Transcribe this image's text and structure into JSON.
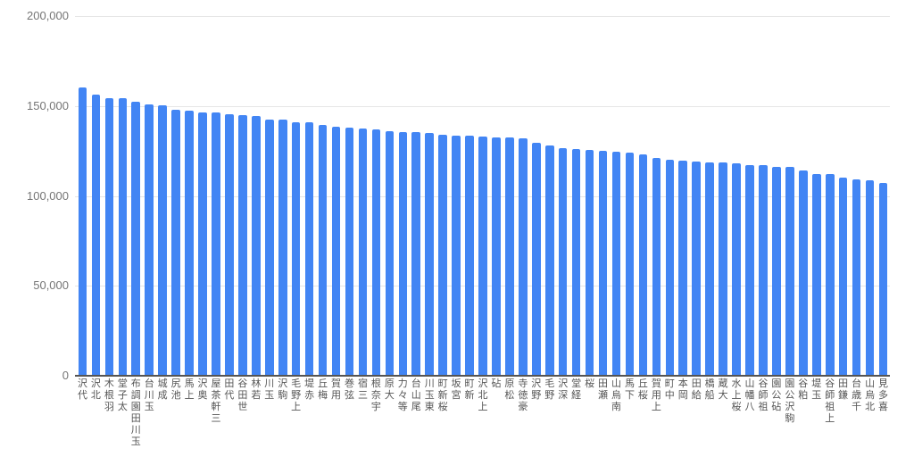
{
  "chart_data": {
    "type": "bar",
    "title": "",
    "xlabel": "",
    "ylabel": "",
    "ylim": [
      0,
      200000
    ],
    "grid": true,
    "legend_position": "none",
    "yticks": [
      {
        "value": 0,
        "label": "0"
      },
      {
        "value": 50000,
        "label": "50,000"
      },
      {
        "value": 100000,
        "label": "100,000"
      },
      {
        "value": 150000,
        "label": "150,000"
      },
      {
        "value": 200000,
        "label": "200,000"
      }
    ],
    "x_label_style": "vertical-reversed-upright-chars",
    "categories": [
      "代沢",
      "北沢",
      "羽根木",
      "太子堂",
      "玉川田園調布",
      "玉川台",
      "成城",
      "池尻",
      "上馬",
      "奥沢",
      "三軒茶屋",
      "代田",
      "世田谷",
      "若林",
      "玉川",
      "駒沢",
      "上野毛",
      "赤堤",
      "梅丘",
      "用賀",
      "弦巻",
      "三宿",
      "宇奈根",
      "大原",
      "等々力",
      "尾山台",
      "東玉川",
      "桜新町",
      "宮坂",
      "新町",
      "上北沢",
      "砧",
      "松原",
      "豪徳寺",
      "野沢",
      "野毛",
      "深沢",
      "経堂",
      "桜",
      "瀬田",
      "南烏山",
      "下馬",
      "桜丘",
      "上用賀",
      "中町",
      "岡本",
      "給田",
      "船橋",
      "大蔵",
      "桜上水",
      "八幡山",
      "祖師谷",
      "砧公園",
      "駒沢公園",
      "粕谷",
      "玉堤",
      "上祖師谷",
      "鎌田",
      "千歳台",
      "北烏山",
      "喜多見"
    ],
    "values": [
      160100,
      156200,
      154500,
      154100,
      152200,
      150700,
      150500,
      147700,
      147400,
      146600,
      146300,
      145300,
      144700,
      144400,
      142600,
      142200,
      141100,
      140800,
      139600,
      138400,
      138100,
      137300,
      137000,
      136100,
      135700,
      135400,
      134800,
      134200,
      133600,
      133300,
      133000,
      132700,
      132300,
      132000,
      129400,
      128000,
      126600,
      126000,
      125500,
      125200,
      124700,
      123900,
      123000,
      121200,
      120100,
      119700,
      119100,
      118800,
      118500,
      118100,
      117300,
      117000,
      116300,
      116000,
      114200,
      112300,
      112000,
      110000,
      109200,
      108600,
      107200
    ],
    "colors": {
      "bar": "#4285f4",
      "gridline": "#e6e6e6",
      "baseline": "#545454",
      "ytick_text": "#757575",
      "xtick_text": "#555555",
      "background": "#ffffff"
    }
  }
}
